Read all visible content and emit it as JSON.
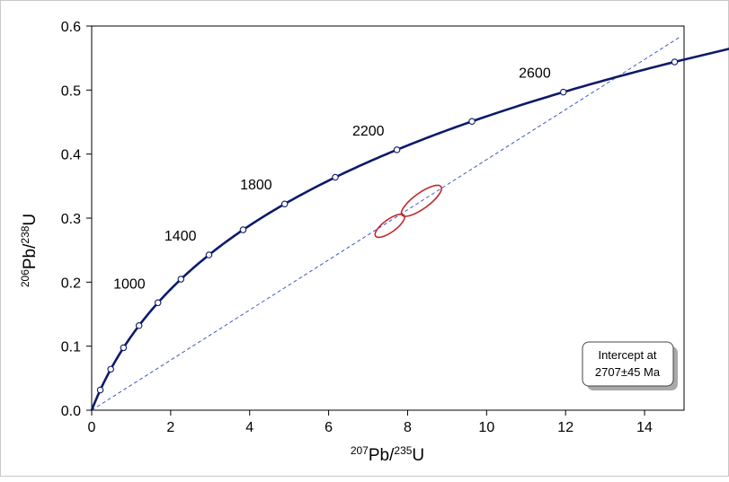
{
  "chart_data": {
    "type": "scatter",
    "title": "",
    "xlabel": {
      "sup1": "207",
      "base1": "Pb/",
      "sup2": "235",
      "base2": "U"
    },
    "ylabel": {
      "sup1": "206",
      "base1": "Pb/",
      "sup2": "238",
      "base2": "U"
    },
    "xlim": [
      0,
      15
    ],
    "ylim": [
      0,
      0.6
    ],
    "xticks": [
      0,
      2,
      4,
      6,
      8,
      10,
      12,
      14
    ],
    "xtick_labels": [
      "0",
      "2",
      "4",
      "6",
      "8",
      "10",
      "12",
      "14"
    ],
    "yticks": [
      0,
      0.1,
      0.2,
      0.3,
      0.4,
      0.5,
      0.6
    ],
    "ytick_labels": [
      "0.0",
      "0.1",
      "0.2",
      "0.3",
      "0.4",
      "0.5",
      "0.6"
    ],
    "grid": false,
    "concordia": {
      "color": "#0d1a6b",
      "lambda238": 1.55125e-10,
      "lambda235": 9.8485e-10,
      "markers_ma": [
        200,
        400,
        600,
        800,
        1000,
        1200,
        1400,
        1600,
        1800,
        2000,
        2200,
        2400,
        2600,
        2800
      ],
      "age_labels": [
        {
          "age": 1000,
          "text": "1000"
        },
        {
          "age": 1400,
          "text": "1400"
        },
        {
          "age": 1800,
          "text": "1800"
        },
        {
          "age": 2200,
          "text": "2200"
        },
        {
          "age": 2600,
          "text": "2600"
        }
      ]
    },
    "discordia": {
      "color": "#3f57c8",
      "from": [
        0,
        0
      ],
      "to": [
        14.9,
        0.583
      ]
    },
    "error_ellipses": [
      {
        "cx": 7.55,
        "cy": 0.288,
        "rx": 0.62,
        "ry": 0.018,
        "angle_deg": -36,
        "color": "#c0282a"
      },
      {
        "cx": 8.35,
        "cy": 0.327,
        "rx": 0.85,
        "ry": 0.022,
        "angle_deg": -36,
        "color": "#c0282a"
      }
    ],
    "annotation": {
      "line1": "Intercept at",
      "line2": "2707±45 Ma"
    }
  }
}
